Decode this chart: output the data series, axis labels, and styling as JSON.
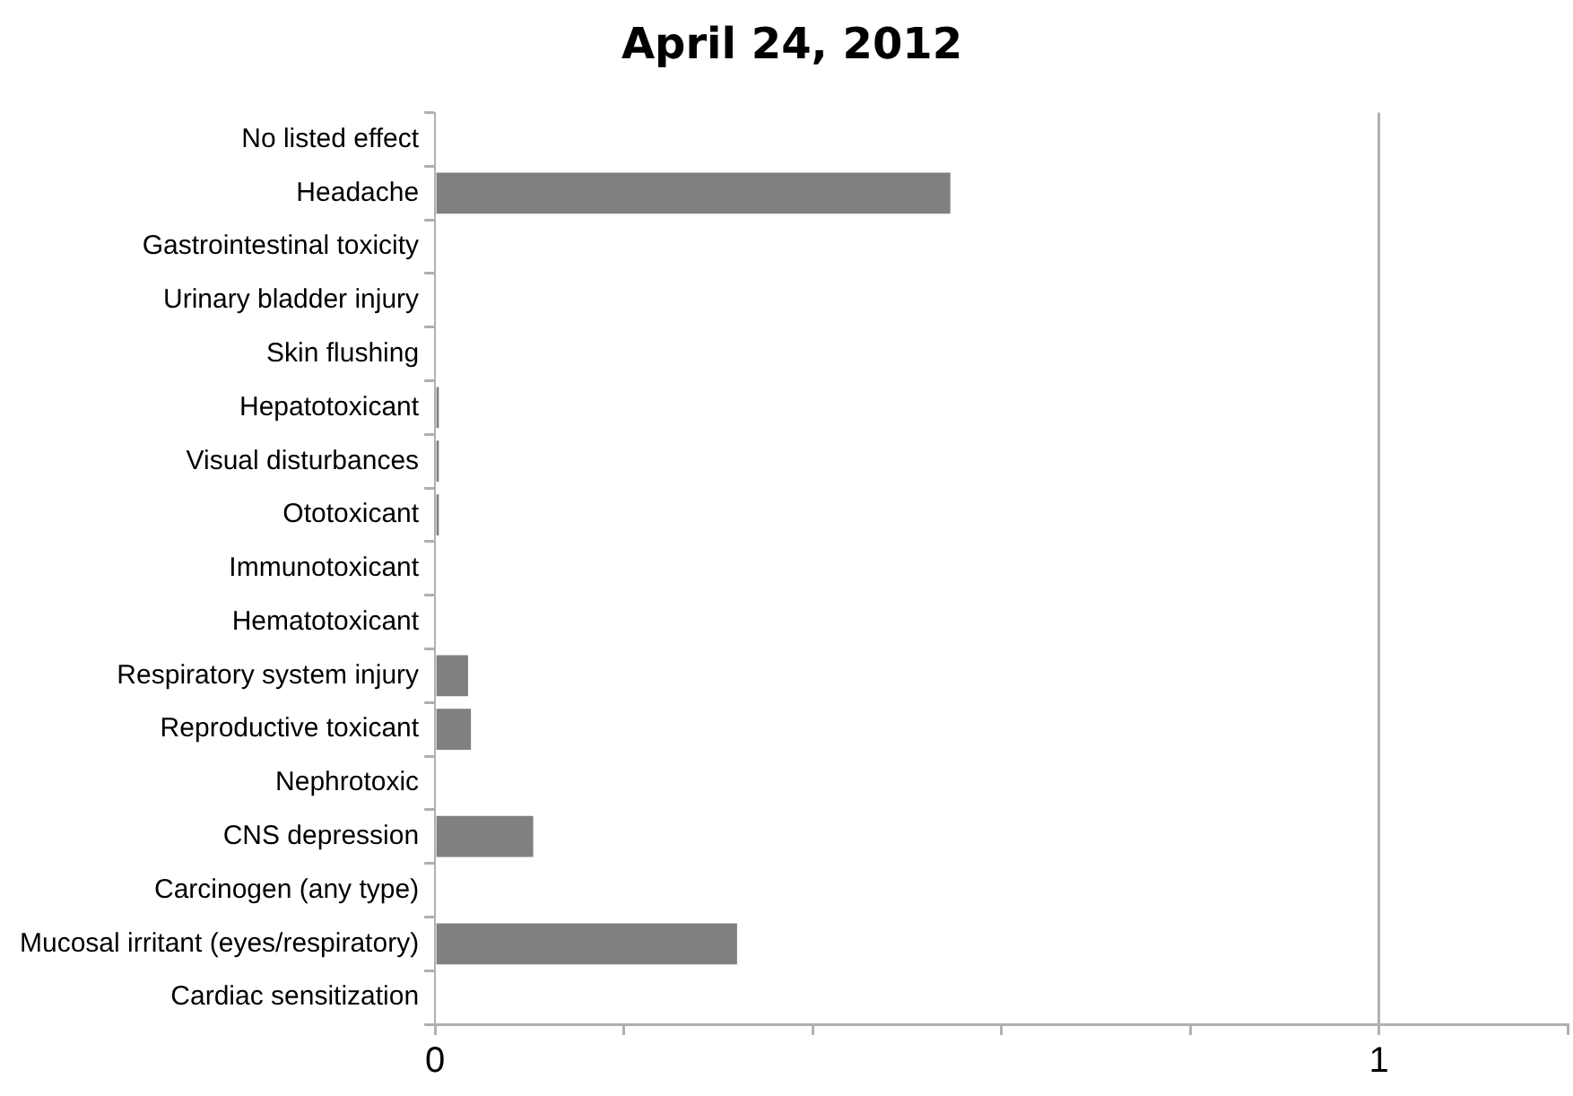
{
  "chart_data": {
    "type": "bar",
    "title": "April 24, 2012",
    "orientation": "horizontal",
    "categories": [
      "No listed effect",
      "Headache",
      "Gastrointestinal toxicity",
      "Urinary bladder injury",
      "Skin flushing",
      "Hepatotoxicant",
      "Visual disturbances",
      "Ototoxicant",
      "Immunotoxicant",
      "Hematotoxicant",
      "Respiratory system injury",
      "Reproductive toxicant",
      "Nephrotoxic",
      "CNS depression",
      "Carcinogen (any type)",
      "Mucosal irritant (eyes/respiratory)",
      "Cardiac sensitization"
    ],
    "values": [
      0,
      0.546,
      0,
      0,
      0,
      0.004,
      0.004,
      0.004,
      0,
      0,
      0.035,
      0.038,
      0,
      0.104,
      0,
      0.32,
      0
    ],
    "color": "#808080",
    "xlim": [
      0,
      1.2
    ],
    "xticks": [
      0,
      {
        "value": 0.2,
        "label": null
      },
      {
        "value": 0.4,
        "label": null
      },
      {
        "value": 0.6,
        "label": null
      },
      {
        "value": 0.8,
        "label": null
      },
      1,
      {
        "value": 1.2,
        "label": null
      }
    ],
    "grid": "x",
    "legend": false
  }
}
